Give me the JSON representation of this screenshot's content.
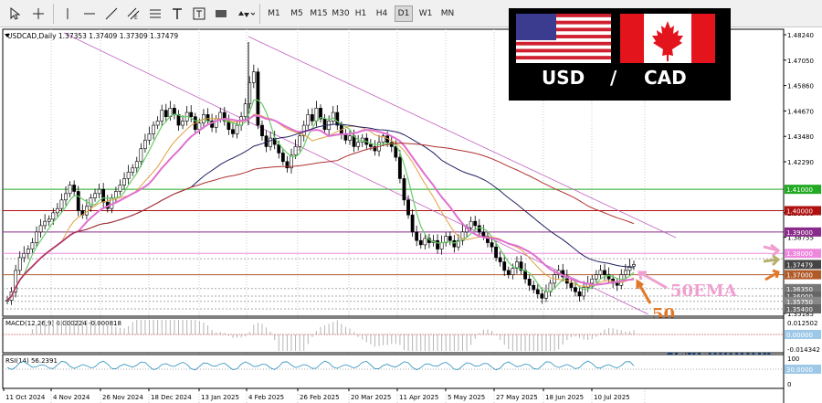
{
  "toolbar": {
    "timeframes": [
      "M1",
      "M5",
      "M15",
      "M30",
      "H1",
      "H4",
      "D1",
      "W1",
      "MN"
    ],
    "active_timeframe": "D1"
  },
  "header": {
    "symbol_info": "USDCAD,Daily  1.37353 1.37409 1.37309 1.37479"
  },
  "banner": {
    "left": "USD",
    "sep": "/",
    "right": "CAD"
  },
  "price_axis": {
    "labels": [
      "1.48240",
      "1.47050",
      "1.45860",
      "1.44670",
      "1.43480",
      "1.42290",
      "1.39900",
      "1.38755",
      "1.35185"
    ],
    "tags": [
      {
        "text": "1.41000",
        "color": "#22aa22"
      },
      {
        "text": "1.40000",
        "color": "#b01010"
      },
      {
        "text": "1.39000",
        "color": "#8a2a8a"
      },
      {
        "text": "1.38000",
        "color": "#ee88dd"
      },
      {
        "text": "1.37479",
        "color": "#444444"
      },
      {
        "text": "1.37000",
        "color": "#b05a28"
      },
      {
        "text": "1.36350",
        "color": "#777777"
      },
      {
        "text": "1.36000",
        "color": "#666666"
      },
      {
        "text": "1.35750",
        "color": "#888888"
      },
      {
        "text": "1.35400",
        "color": "#666666"
      }
    ]
  },
  "macd": {
    "label": "MACD(12,26,9) 0.000224 -0.000818",
    "axis": [
      "0.012502",
      "0.00000",
      "-0.014342"
    ]
  },
  "rsi": {
    "label": "RSI(14) 56.2391",
    "axis": [
      "100",
      "30.0000",
      "0"
    ]
  },
  "dates": [
    "11 Oct 2024",
    "4 Nov 2024",
    "26 Nov 2024",
    "18 Dec 2024",
    "13 Jan 2025",
    "4 Feb 2025",
    "26 Feb 2025",
    "20 Mar 2025",
    "11 Apr 2025",
    "5 May 2025",
    "27 May 2025",
    "18 Jun 2025",
    "10 Jul 2025"
  ],
  "annotations": {
    "ema": "50EMA",
    "num": "50",
    "mixed": "смешанны"
  },
  "colors": {
    "level_green": "#22aa22",
    "level_red": "#b01010",
    "level_purple": "#8a2a8a",
    "level_pink": "#ee88dd",
    "level_orange": "#b05a28",
    "ema_pink": "#e070d0",
    "ma_green": "#66cc66",
    "ma_orange": "#e0a040",
    "ma_navy": "#202060",
    "ma_darkred": "#b03030",
    "annotation_blue": "#1a73e8",
    "annotation_orange": "#e07828",
    "annotation_pink": "#f0a0d0"
  }
}
